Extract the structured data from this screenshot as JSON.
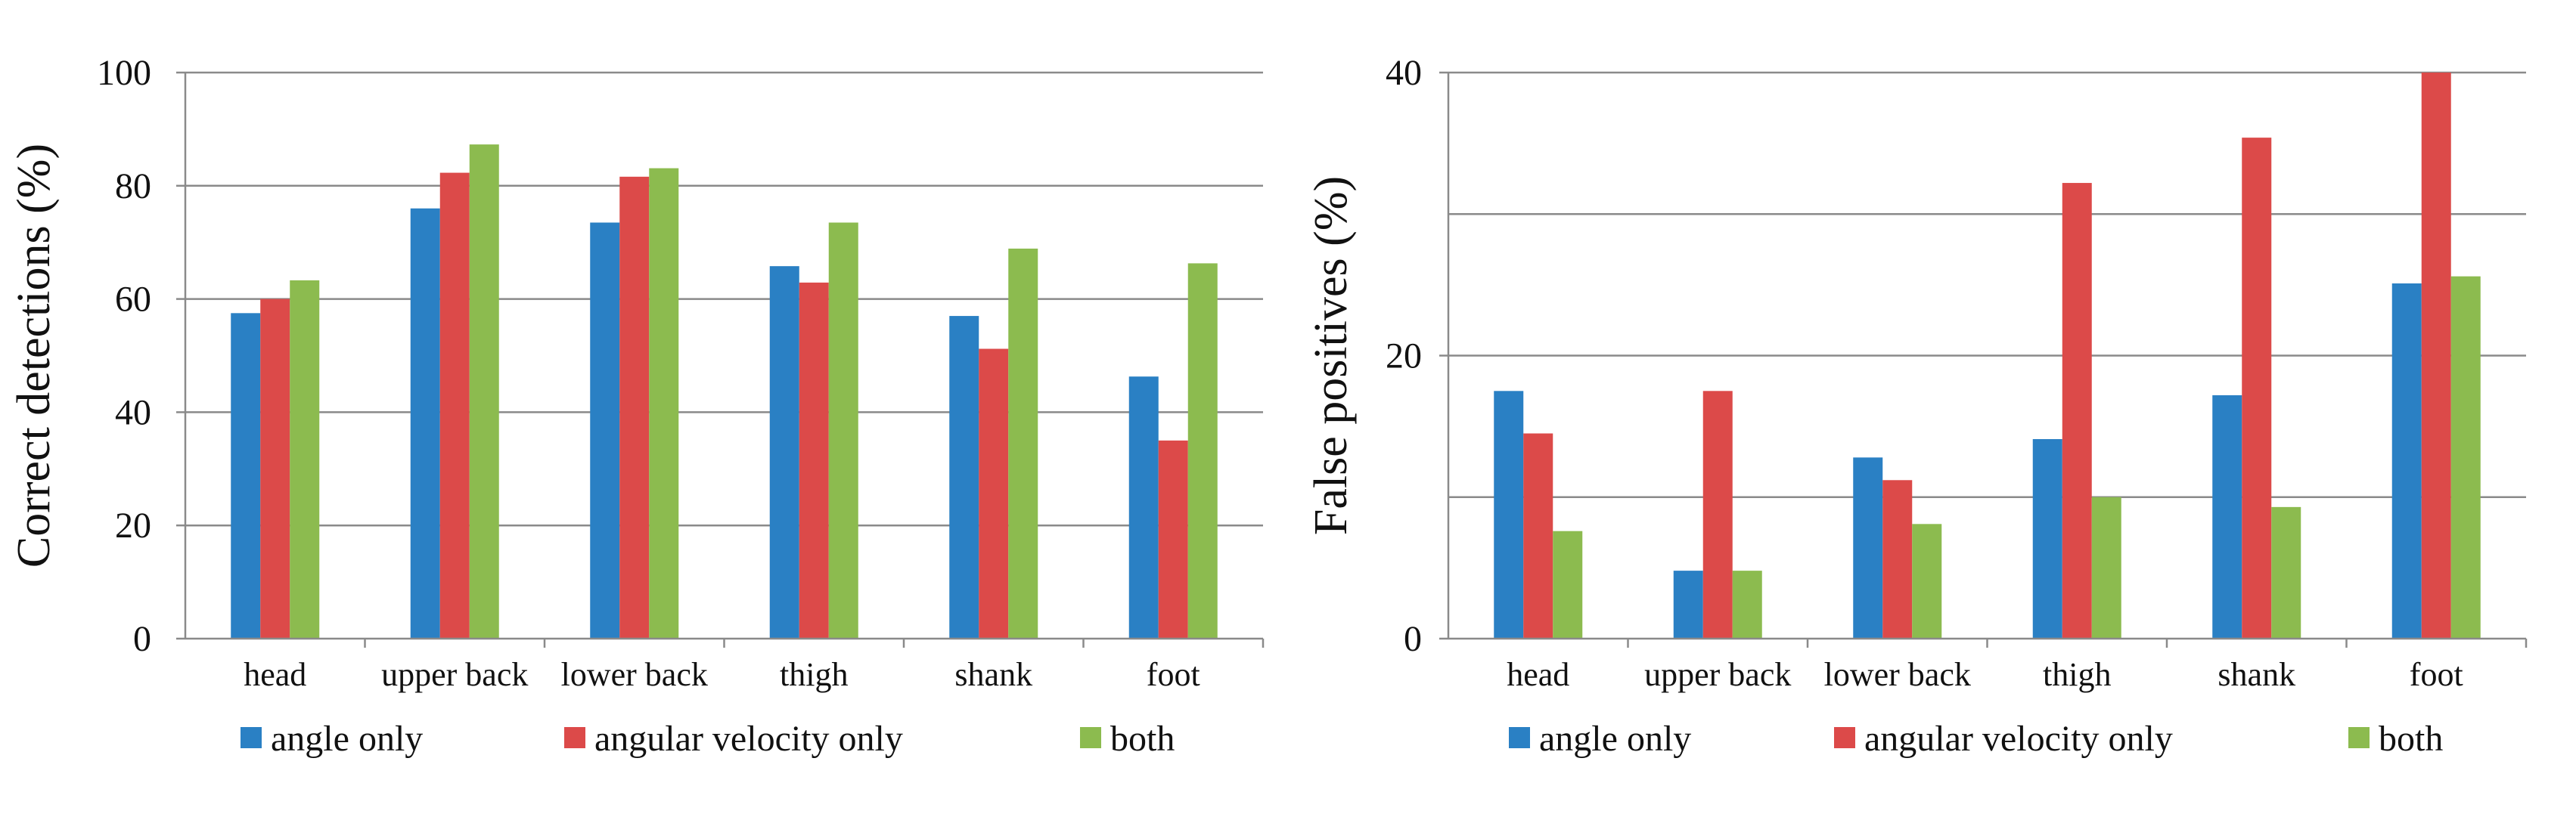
{
  "chart_data": [
    {
      "type": "bar",
      "title": "",
      "xlabel": "",
      "ylabel": "Correct detections (%)",
      "ylim": [
        0,
        100
      ],
      "yticks": [
        0,
        20,
        40,
        60,
        80,
        100
      ],
      "gridlines": [
        20,
        40,
        60,
        80,
        100
      ],
      "categories": [
        "head",
        "upper back",
        "lower back",
        "thigh",
        "shank",
        "foot"
      ],
      "series": [
        {
          "name": "angle only",
          "color": "#2A80C4",
          "values": [
            57.5,
            76,
            73.5,
            65.8,
            57,
            46.3
          ]
        },
        {
          "name": "angular velocity only",
          "color": "#DC4A49",
          "values": [
            60,
            82.3,
            81.6,
            62.9,
            51.2,
            35
          ]
        },
        {
          "name": "both",
          "color": "#8CBB4F",
          "values": [
            63.3,
            87.3,
            83.1,
            73.5,
            68.9,
            66.3
          ]
        }
      ],
      "legend": "bottom"
    },
    {
      "type": "bar",
      "title": "",
      "xlabel": "",
      "ylabel": "False positives (%)",
      "ylim": [
        0,
        40
      ],
      "yticks": [
        0,
        20,
        40
      ],
      "gridlines": [
        10,
        20,
        30,
        40
      ],
      "categories": [
        "head",
        "upper back",
        "lower back",
        "thigh",
        "shank",
        "foot"
      ],
      "series": [
        {
          "name": "angle only",
          "color": "#2A80C4",
          "values": [
            17.5,
            4.8,
            12.8,
            14.1,
            17.2,
            25.1
          ]
        },
        {
          "name": "angular velocity only",
          "color": "#DC4A49",
          "values": [
            14.5,
            17.5,
            11.2,
            32.2,
            35.4,
            40
          ]
        },
        {
          "name": "both",
          "color": "#8CBB4F",
          "values": [
            7.6,
            4.8,
            8.1,
            10,
            9.3,
            25.6
          ]
        }
      ],
      "legend": "bottom"
    }
  ]
}
